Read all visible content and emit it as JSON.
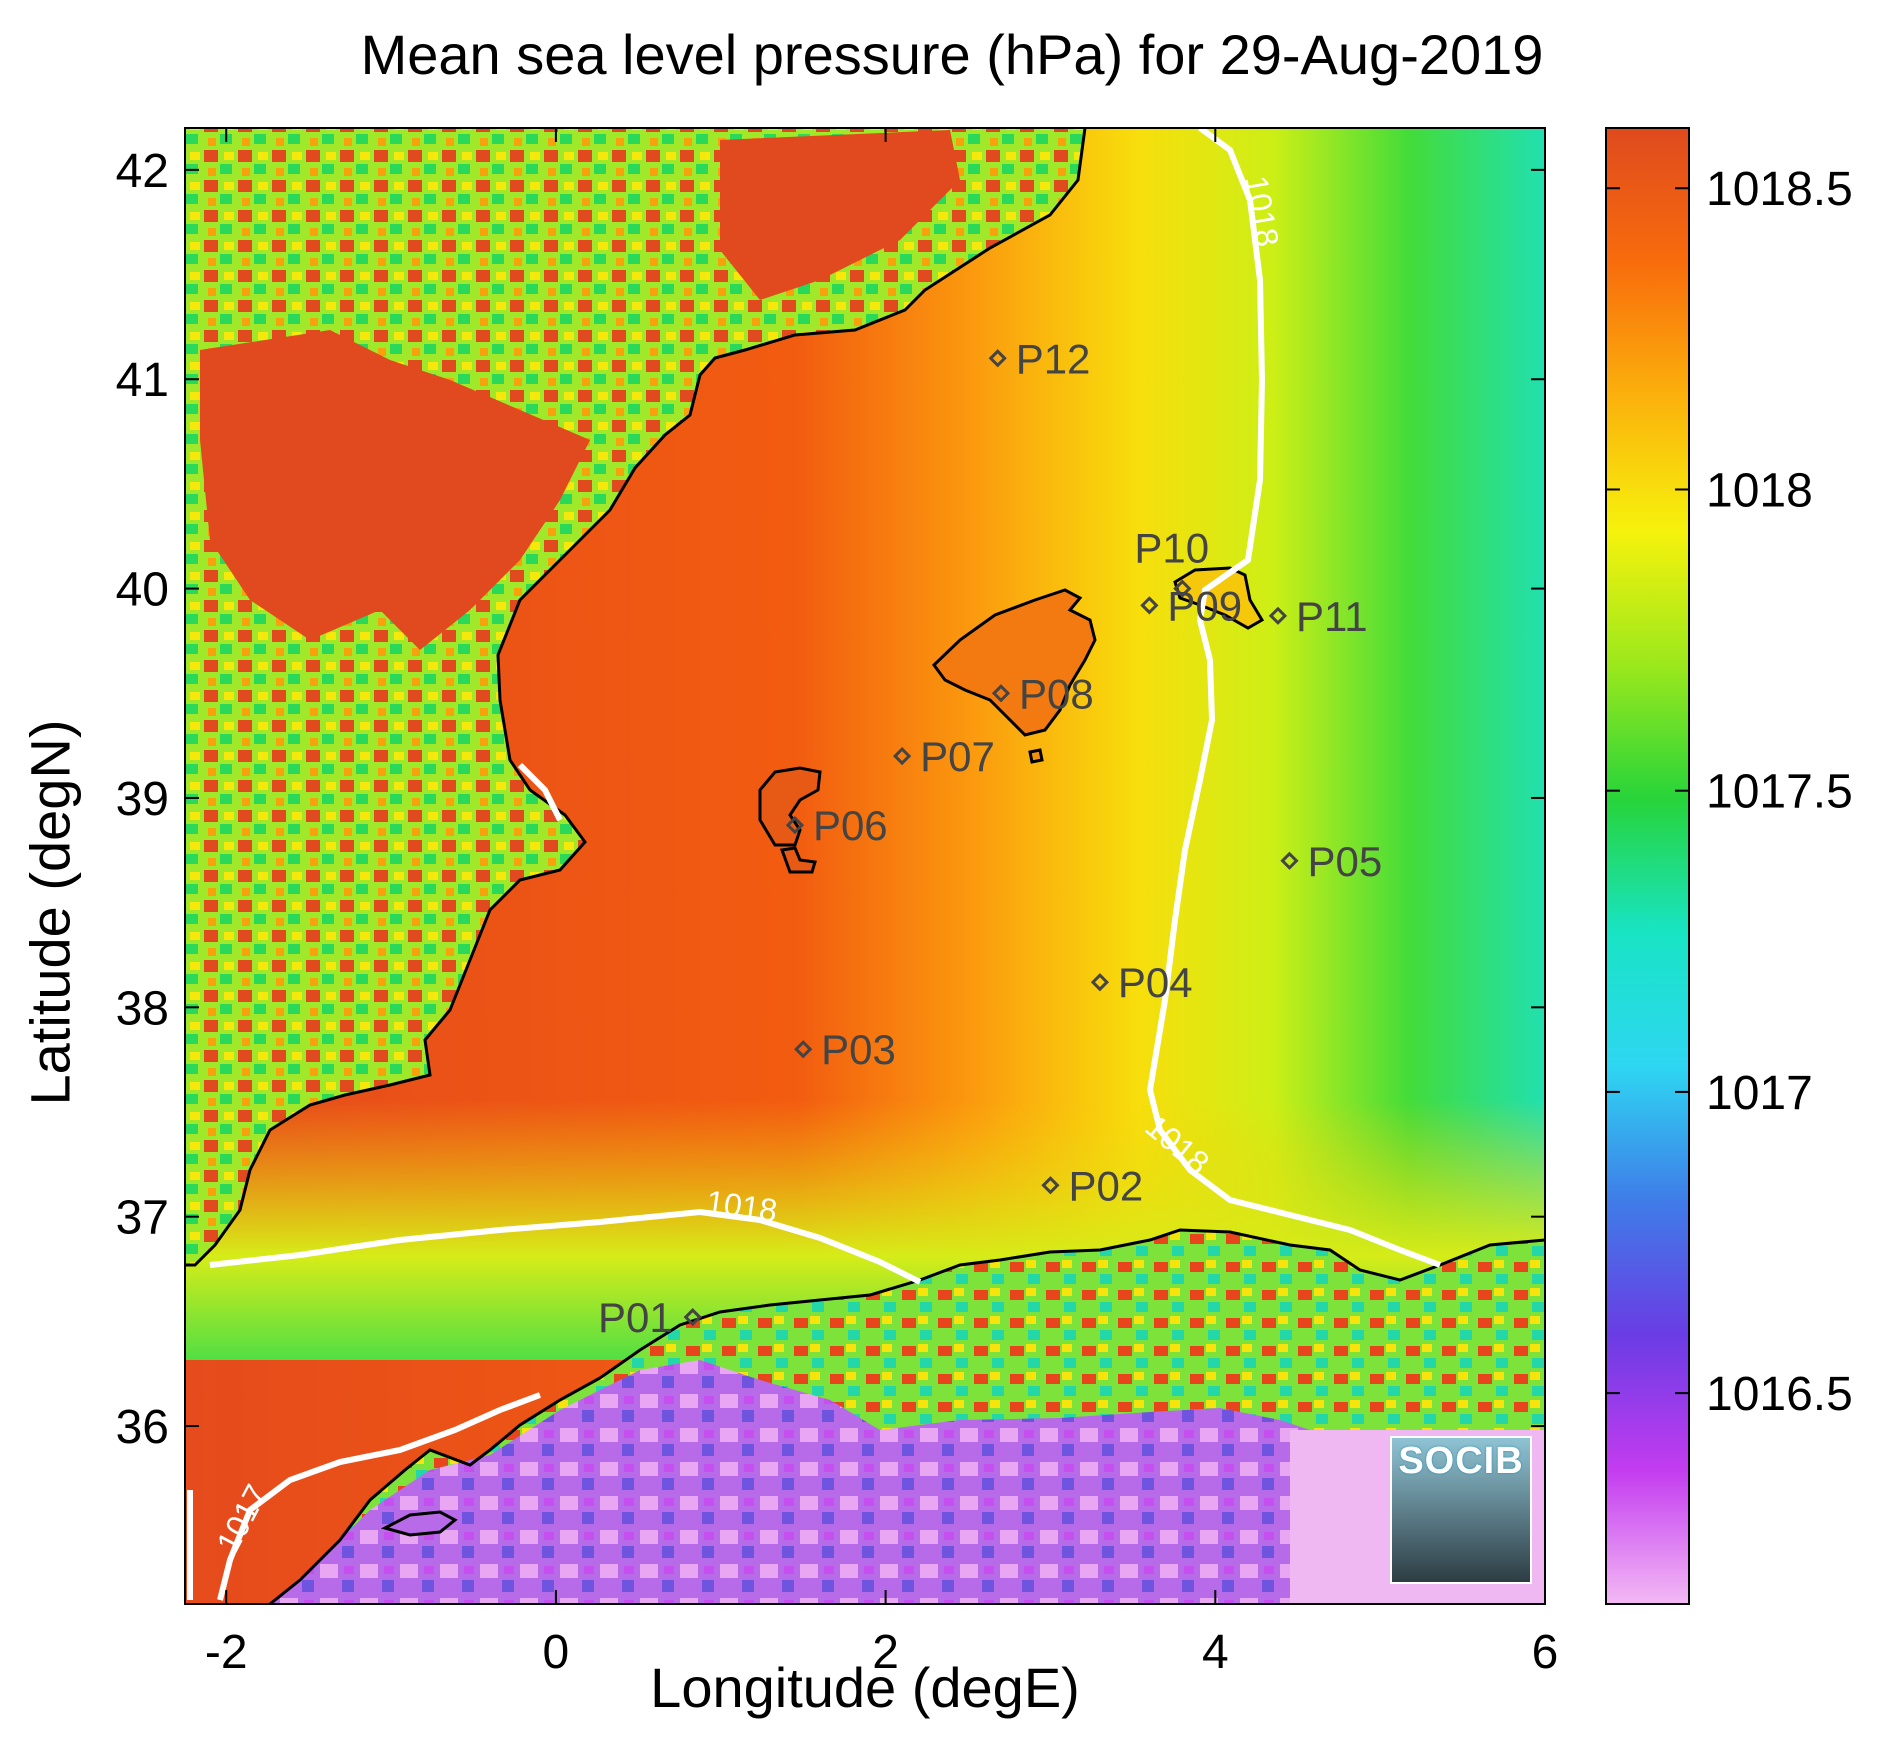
{
  "title": "Mean sea level pressure (hPa) for 29-Aug-2019",
  "axes": {
    "xlabel": "Longitude (degE)",
    "ylabel": "Latitude (degN)",
    "x_ticks": [
      "-2",
      "0",
      "2",
      "4",
      "6"
    ],
    "y_ticks": [
      "42",
      "41",
      "40",
      "39",
      "38",
      "37",
      "36"
    ]
  },
  "colorbar": {
    "ticks": [
      "1018.5",
      "1018",
      "1017.5",
      "1017",
      "1016.5"
    ],
    "range": [
      1016.15,
      1018.6
    ],
    "colors": [
      "#f3b9f4",
      "#c33cf0",
      "#6a3ce4",
      "#3f7ce8",
      "#2ed6f2",
      "#18e4c4",
      "#27d43a",
      "#9be81c",
      "#f6f20c",
      "#fbb10c",
      "#f86c0c",
      "#df4a1e"
    ]
  },
  "contours": {
    "labels": [
      "1018",
      "1018",
      "1018",
      "1017"
    ],
    "color": "#ffffff"
  },
  "stations": [
    {
      "id": "P01",
      "lon": 0.83,
      "lat": 36.52
    },
    {
      "id": "P02",
      "lon": 3.0,
      "lat": 37.15
    },
    {
      "id": "P03",
      "lon": 1.5,
      "lat": 37.8
    },
    {
      "id": "P04",
      "lon": 3.3,
      "lat": 38.12
    },
    {
      "id": "P05",
      "lon": 4.45,
      "lat": 38.7
    },
    {
      "id": "P06",
      "lon": 1.45,
      "lat": 38.87
    },
    {
      "id": "P07",
      "lon": 2.1,
      "lat": 39.2
    },
    {
      "id": "P08",
      "lon": 2.7,
      "lat": 39.5
    },
    {
      "id": "P09",
      "lon": 3.6,
      "lat": 39.92
    },
    {
      "id": "P10",
      "lon": 3.8,
      "lat": 40.0
    },
    {
      "id": "P11",
      "lon": 4.38,
      "lat": 39.87
    },
    {
      "id": "P12",
      "lon": 2.68,
      "lat": 41.1
    }
  ],
  "logo_text": "SOCIB"
}
